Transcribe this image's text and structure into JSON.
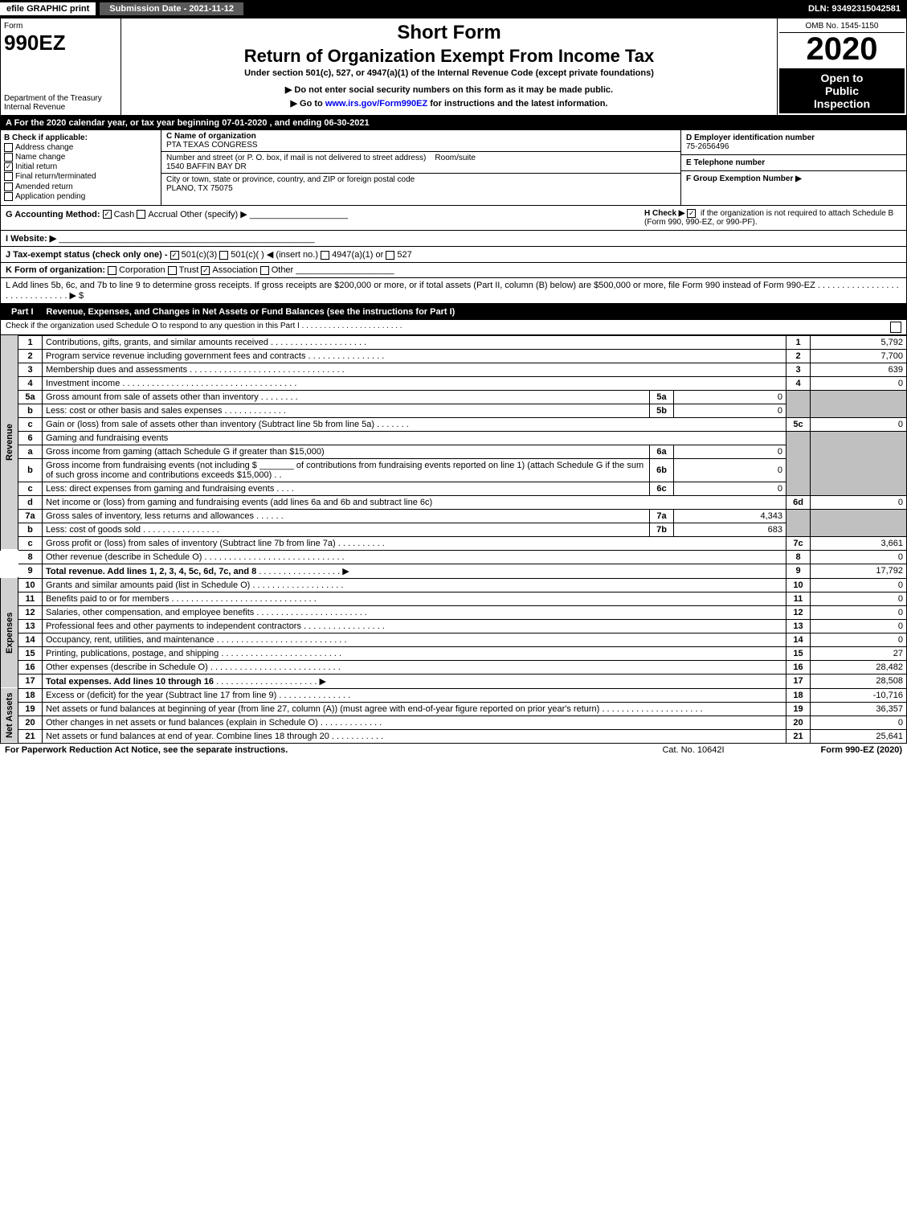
{
  "topbar": {
    "efile": "efile GRAPHIC print",
    "submission": "Submission Date - 2021-11-12",
    "dln": "DLN: 93492315042581"
  },
  "header": {
    "form_word": "Form",
    "form_number": "990EZ",
    "department": "Department of the Treasury",
    "irs": "Internal Revenue",
    "short_form": "Short Form",
    "return_title": "Return of Organization Exempt From Income Tax",
    "under_section": "Under section 501(c), 527, or 4947(a)(1) of the Internal Revenue Code (except private foundations)",
    "ssn_note": "▶ Do not enter social security numbers on this form as it may be made public.",
    "goto": "▶ Go to www.irs.gov/Form990EZ for instructions and the latest information.",
    "goto_url": "www.irs.gov/Form990EZ",
    "omb": "OMB No. 1545-1150",
    "year": "2020",
    "open": "Open to",
    "public": "Public",
    "inspection": "Inspection"
  },
  "period": "A For the 2020 calendar year, or tax year beginning 07-01-2020 , and ending 06-30-2021",
  "box_b": {
    "title": "B Check if applicable:",
    "address_change": "Address change",
    "name_change": "Name change",
    "initial_return": "Initial return",
    "final_return": "Final return/terminated",
    "amended_return": "Amended return",
    "application_pending": "Application pending"
  },
  "box_c": {
    "name_label": "C Name of organization",
    "name": "PTA TEXAS CONGRESS",
    "street_label": "Number and street (or P. O. box, if mail is not delivered to street address)",
    "room_label": "Room/suite",
    "street": "1540 BAFFIN BAY DR",
    "city_label": "City or town, state or province, country, and ZIP or foreign postal code",
    "city": "PLANO, TX  75075"
  },
  "box_d": {
    "label": "D Employer identification number",
    "ein": "75-2656496"
  },
  "box_e": {
    "label": "E Telephone number",
    "phone": ""
  },
  "box_f": {
    "label": "F Group Exemption Number  ▶",
    "num": ""
  },
  "box_g": {
    "label": "G Accounting Method:",
    "cash": "Cash",
    "accrual": "Accrual",
    "other": "Other (specify) ▶"
  },
  "box_h": {
    "label": "H Check ▶",
    "text": "if the organization is not required to attach Schedule B (Form 990, 990-EZ, or 990-PF)."
  },
  "box_i": {
    "label": "I Website: ▶",
    "value": ""
  },
  "box_j": {
    "label": "J Tax-exempt status (check only one) -",
    "opt1": "501(c)(3)",
    "opt2": "501(c)(  ) ◀ (insert no.)",
    "opt3": "4947(a)(1) or",
    "opt4": "527"
  },
  "box_k": {
    "label": "K Form of organization:",
    "corp": "Corporation",
    "trust": "Trust",
    "assoc": "Association",
    "other": "Other"
  },
  "box_l": "L Add lines 5b, 6c, and 7b to line 9 to determine gross receipts. If gross receipts are $200,000 or more, or if total assets (Part II, column (B) below) are $500,000 or more, file Form 990 instead of Form 990-EZ . . . . . . . . . . . . . . . . . . . . . . . . . . . . . . ▶ $",
  "part1": {
    "label": "Part I",
    "title": "Revenue, Expenses, and Changes in Net Assets or Fund Balances (see the instructions for Part I)",
    "check_text": "Check if the organization used Schedule O to respond to any question in this Part I . . . . . . . . . . . . . . . . . . . . . . ."
  },
  "tabs": {
    "revenue": "Revenue",
    "expenses": "Expenses",
    "netassets": "Net Assets"
  },
  "lines": {
    "l1": {
      "n": "1",
      "d": "Contributions, gifts, grants, and similar amounts received",
      "num": "1",
      "amt": "5,792"
    },
    "l2": {
      "n": "2",
      "d": "Program service revenue including government fees and contracts",
      "num": "2",
      "amt": "7,700"
    },
    "l3": {
      "n": "3",
      "d": "Membership dues and assessments",
      "num": "3",
      "amt": "639"
    },
    "l4": {
      "n": "4",
      "d": "Investment income",
      "num": "4",
      "amt": "0"
    },
    "l5a": {
      "n": "5a",
      "d": "Gross amount from sale of assets other than inventory",
      "sn": "5a",
      "sv": "0"
    },
    "l5b": {
      "n": "b",
      "d": "Less: cost or other basis and sales expenses",
      "sn": "5b",
      "sv": "0"
    },
    "l5c": {
      "n": "c",
      "d": "Gain or (loss) from sale of assets other than inventory (Subtract line 5b from line 5a)",
      "num": "5c",
      "amt": "0"
    },
    "l6": {
      "n": "6",
      "d": "Gaming and fundraising events"
    },
    "l6a": {
      "n": "a",
      "d": "Gross income from gaming (attach Schedule G if greater than $15,000)",
      "sn": "6a",
      "sv": "0"
    },
    "l6b": {
      "n": "b",
      "d1": "Gross income from fundraising events (not including $",
      "d2": " of contributions from fundraising events reported on line 1) (attach Schedule G if the sum of such gross income and contributions exceeds $15,000)",
      "sn": "6b",
      "sv": "0"
    },
    "l6c": {
      "n": "c",
      "d": "Less: direct expenses from gaming and fundraising events",
      "sn": "6c",
      "sv": "0"
    },
    "l6d": {
      "n": "d",
      "d": "Net income or (loss) from gaming and fundraising events (add lines 6a and 6b and subtract line 6c)",
      "num": "6d",
      "amt": "0"
    },
    "l7a": {
      "n": "7a",
      "d": "Gross sales of inventory, less returns and allowances",
      "sn": "7a",
      "sv": "4,343"
    },
    "l7b": {
      "n": "b",
      "d": "Less: cost of goods sold",
      "sn": "7b",
      "sv": "683"
    },
    "l7c": {
      "n": "c",
      "d": "Gross profit or (loss) from sales of inventory (Subtract line 7b from line 7a)",
      "num": "7c",
      "amt": "3,661"
    },
    "l8": {
      "n": "8",
      "d": "Other revenue (describe in Schedule O)",
      "num": "8",
      "amt": "0"
    },
    "l9": {
      "n": "9",
      "d": "Total revenue. Add lines 1, 2, 3, 4, 5c, 6d, 7c, and 8",
      "num": "9",
      "amt": "17,792"
    },
    "l10": {
      "n": "10",
      "d": "Grants and similar amounts paid (list in Schedule O)",
      "num": "10",
      "amt": "0"
    },
    "l11": {
      "n": "11",
      "d": "Benefits paid to or for members",
      "num": "11",
      "amt": "0"
    },
    "l12": {
      "n": "12",
      "d": "Salaries, other compensation, and employee benefits",
      "num": "12",
      "amt": "0"
    },
    "l13": {
      "n": "13",
      "d": "Professional fees and other payments to independent contractors",
      "num": "13",
      "amt": "0"
    },
    "l14": {
      "n": "14",
      "d": "Occupancy, rent, utilities, and maintenance",
      "num": "14",
      "amt": "0"
    },
    "l15": {
      "n": "15",
      "d": "Printing, publications, postage, and shipping",
      "num": "15",
      "amt": "27"
    },
    "l16": {
      "n": "16",
      "d": "Other expenses (describe in Schedule O)",
      "num": "16",
      "amt": "28,482"
    },
    "l17": {
      "n": "17",
      "d": "Total expenses. Add lines 10 through 16",
      "num": "17",
      "amt": "28,508"
    },
    "l18": {
      "n": "18",
      "d": "Excess or (deficit) for the year (Subtract line 17 from line 9)",
      "num": "18",
      "amt": "-10,716"
    },
    "l19": {
      "n": "19",
      "d": "Net assets or fund balances at beginning of year (from line 27, column (A)) (must agree with end-of-year figure reported on prior year's return)",
      "num": "19",
      "amt": "36,357"
    },
    "l20": {
      "n": "20",
      "d": "Other changes in net assets or fund balances (explain in Schedule O)",
      "num": "20",
      "amt": "0"
    },
    "l21": {
      "n": "21",
      "d": "Net assets or fund balances at end of year. Combine lines 18 through 20",
      "num": "21",
      "amt": "25,641"
    }
  },
  "footer": {
    "notice": "For Paperwork Reduction Act Notice, see the separate instructions.",
    "cat": "Cat. No. 10642I",
    "form": "Form 990-EZ (2020)"
  },
  "colors": {
    "black": "#000000",
    "white": "#ffffff",
    "gray": "#c0c0c0",
    "midgray": "#5a5a5a"
  }
}
